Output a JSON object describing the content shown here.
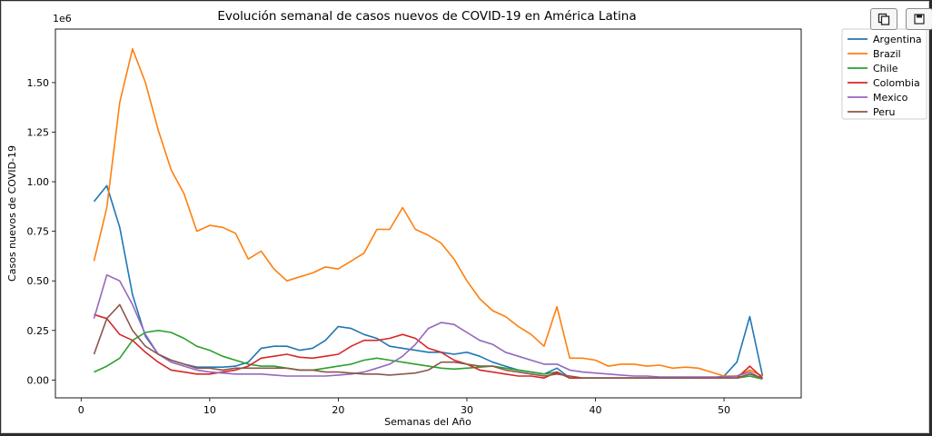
{
  "toolbar": {
    "copy_icon": "copy-icon",
    "save_icon": "save-icon"
  },
  "chart_data": {
    "type": "line",
    "title": "Evolución semanal de casos nuevos de COVID-19 en América Latina",
    "xlabel": "Semanas del Año",
    "ylabel": "Casos nuevos de COVID-19",
    "y_offset_label": "1e6",
    "xlim": [
      -2,
      56
    ],
    "ylim": [
      -0.09,
      1.77
    ],
    "xticks": [
      0,
      10,
      20,
      30,
      40,
      50
    ],
    "yticks": [
      0.0,
      0.25,
      0.5,
      0.75,
      1.0,
      1.25,
      1.5
    ],
    "ytick_labels": [
      "0.00",
      "0.25",
      "0.50",
      "0.75",
      "1.00",
      "1.25",
      "1.50"
    ],
    "legend_position": "outside-top-right",
    "grid": false,
    "x": [
      1,
      2,
      3,
      4,
      5,
      6,
      7,
      8,
      9,
      10,
      11,
      12,
      13,
      14,
      15,
      16,
      17,
      18,
      19,
      20,
      21,
      22,
      23,
      24,
      25,
      26,
      27,
      28,
      29,
      30,
      31,
      32,
      33,
      34,
      35,
      36,
      37,
      38,
      39,
      40,
      41,
      42,
      43,
      44,
      45,
      46,
      47,
      48,
      49,
      50,
      51,
      52,
      53
    ],
    "series": [
      {
        "name": "Argentina",
        "color": "#1f77b4",
        "values": [
          0.9,
          0.98,
          0.77,
          0.43,
          0.22,
          0.13,
          0.1,
          0.08,
          0.065,
          0.065,
          0.065,
          0.07,
          0.09,
          0.16,
          0.17,
          0.17,
          0.15,
          0.16,
          0.2,
          0.27,
          0.26,
          0.23,
          0.21,
          0.17,
          0.16,
          0.15,
          0.14,
          0.14,
          0.13,
          0.14,
          0.12,
          0.09,
          0.07,
          0.05,
          0.04,
          0.03,
          0.06,
          0.01,
          0.01,
          0.01,
          0.01,
          0.01,
          0.01,
          0.01,
          0.01,
          0.01,
          0.01,
          0.01,
          0.01,
          0.02,
          0.09,
          0.32,
          0.02
        ]
      },
      {
        "name": "Brazil",
        "color": "#ff7f0e",
        "values": [
          0.6,
          0.87,
          1.4,
          1.67,
          1.5,
          1.26,
          1.06,
          0.94,
          0.75,
          0.78,
          0.77,
          0.74,
          0.61,
          0.65,
          0.56,
          0.5,
          0.52,
          0.54,
          0.57,
          0.56,
          0.6,
          0.64,
          0.76,
          0.76,
          0.87,
          0.76,
          0.73,
          0.69,
          0.61,
          0.5,
          0.41,
          0.35,
          0.32,
          0.27,
          0.23,
          0.17,
          0.37,
          0.11,
          0.11,
          0.1,
          0.07,
          0.08,
          0.08,
          0.07,
          0.075,
          0.06,
          0.065,
          0.06,
          0.04,
          0.02,
          0.02,
          0.05,
          0.02
        ]
      },
      {
        "name": "Chile",
        "color": "#2ca02c",
        "values": [
          0.04,
          0.07,
          0.11,
          0.2,
          0.24,
          0.25,
          0.24,
          0.21,
          0.17,
          0.15,
          0.12,
          0.1,
          0.08,
          0.07,
          0.07,
          0.06,
          0.05,
          0.05,
          0.06,
          0.07,
          0.08,
          0.1,
          0.11,
          0.1,
          0.09,
          0.08,
          0.07,
          0.06,
          0.055,
          0.06,
          0.065,
          0.07,
          0.06,
          0.05,
          0.04,
          0.03,
          0.04,
          0.01,
          0.01,
          0.01,
          0.01,
          0.01,
          0.01,
          0.01,
          0.01,
          0.01,
          0.01,
          0.01,
          0.01,
          0.01,
          0.01,
          0.02,
          0.005
        ]
      },
      {
        "name": "Colombia",
        "color": "#d62728",
        "values": [
          0.33,
          0.31,
          0.23,
          0.2,
          0.14,
          0.09,
          0.05,
          0.04,
          0.03,
          0.03,
          0.04,
          0.05,
          0.07,
          0.11,
          0.12,
          0.13,
          0.115,
          0.11,
          0.12,
          0.13,
          0.17,
          0.2,
          0.2,
          0.21,
          0.23,
          0.21,
          0.16,
          0.14,
          0.1,
          0.08,
          0.05,
          0.04,
          0.03,
          0.02,
          0.02,
          0.01,
          0.04,
          0.01,
          0.01,
          0.01,
          0.01,
          0.01,
          0.01,
          0.01,
          0.01,
          0.01,
          0.01,
          0.01,
          0.01,
          0.01,
          0.01,
          0.07,
          0.01
        ]
      },
      {
        "name": "Mexico",
        "color": "#9467bd",
        "values": [
          0.31,
          0.53,
          0.5,
          0.38,
          0.23,
          0.13,
          0.09,
          0.07,
          0.05,
          0.04,
          0.035,
          0.03,
          0.03,
          0.03,
          0.025,
          0.02,
          0.02,
          0.02,
          0.02,
          0.025,
          0.03,
          0.04,
          0.06,
          0.08,
          0.12,
          0.18,
          0.26,
          0.29,
          0.28,
          0.24,
          0.2,
          0.18,
          0.14,
          0.12,
          0.1,
          0.08,
          0.08,
          0.05,
          0.04,
          0.035,
          0.03,
          0.025,
          0.02,
          0.02,
          0.015,
          0.015,
          0.015,
          0.015,
          0.015,
          0.015,
          0.02,
          0.04,
          0.005
        ]
      },
      {
        "name": "Peru",
        "color": "#8c564b",
        "values": [
          0.13,
          0.31,
          0.38,
          0.25,
          0.17,
          0.13,
          0.1,
          0.08,
          0.06,
          0.06,
          0.05,
          0.06,
          0.06,
          0.06,
          0.06,
          0.06,
          0.05,
          0.05,
          0.04,
          0.04,
          0.035,
          0.03,
          0.03,
          0.025,
          0.03,
          0.035,
          0.05,
          0.09,
          0.09,
          0.08,
          0.07,
          0.07,
          0.05,
          0.04,
          0.03,
          0.02,
          0.03,
          0.02,
          0.01,
          0.01,
          0.01,
          0.01,
          0.01,
          0.01,
          0.01,
          0.01,
          0.01,
          0.01,
          0.01,
          0.01,
          0.01,
          0.03,
          0.01
        ]
      }
    ]
  }
}
